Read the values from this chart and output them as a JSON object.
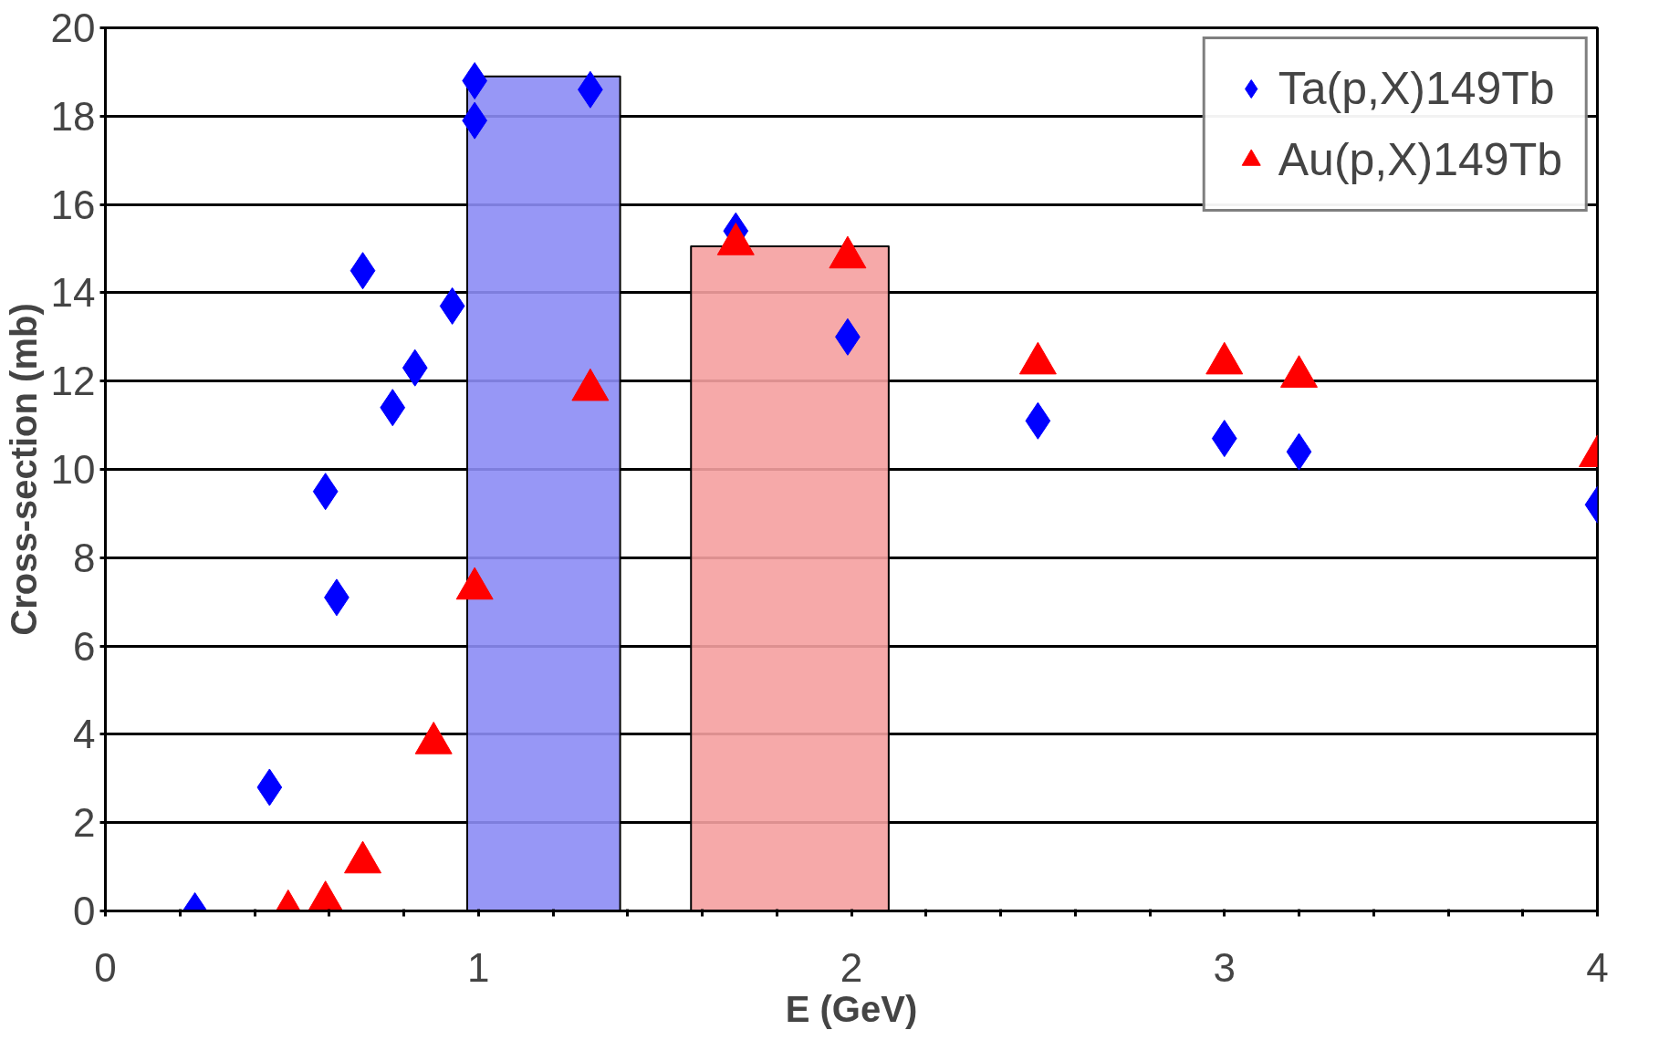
{
  "chart_data": {
    "type": "scatter",
    "xlabel": "E (GeV)",
    "ylabel": "Cross-section (mb)",
    "xlim": [
      0,
      4
    ],
    "ylim": [
      0,
      20
    ],
    "xticks": [
      0,
      {
        "value": 0.2,
        "label": null
      },
      {
        "value": 0.4,
        "label": null
      },
      {
        "value": 0.6,
        "label": null
      },
      {
        "value": 0.8,
        "label": null
      },
      1,
      {
        "value": 1.2,
        "label": null
      },
      {
        "value": 1.4,
        "label": null
      },
      {
        "value": 1.6,
        "label": null
      },
      {
        "value": 1.8,
        "label": null
      },
      2,
      {
        "value": 2.2,
        "label": null
      },
      {
        "value": 2.4,
        "label": null
      },
      {
        "value": 2.6,
        "label": null
      },
      {
        "value": 2.8,
        "label": null
      },
      3,
      {
        "value": 3.2,
        "label": null
      },
      {
        "value": 3.4,
        "label": null
      },
      {
        "value": 3.6,
        "label": null
      },
      {
        "value": 3.8,
        "label": null
      },
      4
    ],
    "yticks": [
      0,
      2,
      4,
      6,
      8,
      10,
      12,
      14,
      16,
      18,
      20
    ],
    "grid": "y",
    "legend": "top right",
    "series": [
      {
        "type": "area",
        "color": "#8c8cf5",
        "x": [
          0.97,
          1.38
        ],
        "values": [
          18.9,
          18.9
        ]
      },
      {
        "type": "area",
        "color": "#f5a0a0",
        "x": [
          1.57,
          2.1
        ],
        "values": [
          15.05,
          15.05
        ]
      },
      {
        "name": "Ta(p,X)149Tb",
        "color": "#0000ff",
        "marker": "diamond",
        "x": [
          0.24,
          0.44,
          0.59,
          0.62,
          0.69,
          0.77,
          0.83,
          0.93,
          0.99,
          0.99,
          1.3,
          1.69,
          1.99,
          2.5,
          3.0,
          3.2,
          4.0
        ],
        "values": [
          0,
          2.8,
          9.5,
          7.1,
          14.5,
          11.4,
          12.3,
          13.7,
          18.8,
          17.9,
          18.6,
          15.4,
          13.0,
          11.1,
          10.7,
          10.4,
          9.2
        ]
      },
      {
        "name": "Au(p,X)149Tb",
        "color": "#ff0000",
        "marker": "triangle",
        "x": [
          0.49,
          0.59,
          0.69,
          0.88,
          0.99,
          1.3,
          1.69,
          1.99,
          2.5,
          3.0,
          3.2,
          4.0
        ],
        "values": [
          0,
          0.2,
          1.1,
          3.8,
          7.3,
          11.8,
          15.1,
          14.8,
          12.4,
          12.4,
          12.1,
          10.3
        ]
      }
    ]
  }
}
